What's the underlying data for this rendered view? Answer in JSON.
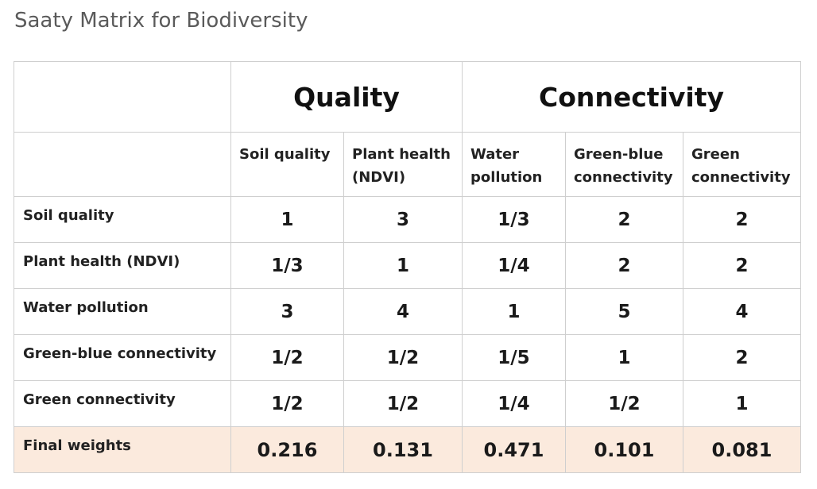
{
  "title": "Saaty Matrix for Biodiversity",
  "groups": [
    {
      "label": "Quality"
    },
    {
      "label": "Connectivity"
    }
  ],
  "columns": [
    {
      "line1": "Soil quality",
      "line2": ""
    },
    {
      "line1": "Plant health",
      "line2": "(NDVI)"
    },
    {
      "line1": "Water",
      "line2": "pollution"
    },
    {
      "line1": "Green-blue",
      "line2": "connectivity"
    },
    {
      "line1": "Green",
      "line2": "connectivity"
    }
  ],
  "rows": [
    {
      "label": "Soil quality",
      "values": [
        "1",
        "3",
        "1/3",
        "2",
        "2"
      ]
    },
    {
      "label": "Plant health (NDVI)",
      "values": [
        "1/3",
        "1",
        "1/4",
        "2",
        "2"
      ]
    },
    {
      "label": "Water pollution",
      "values": [
        "3",
        "4",
        "1",
        "5",
        "4"
      ]
    },
    {
      "label": "Green-blue connectivity",
      "values": [
        "1/2",
        "1/2",
        "1/5",
        "1",
        "2"
      ]
    },
    {
      "label": "Green connectivity",
      "values": [
        "1/2",
        "1/2",
        "1/4",
        "1/2",
        "1"
      ]
    }
  ],
  "weights": {
    "label": "Final weights",
    "values": [
      "0.216",
      "0.131",
      "0.471",
      "0.101",
      "0.081"
    ]
  },
  "colors": {
    "border": "#cfcfcf",
    "weights_background": "#fbeadd",
    "title": "#5a5a5a"
  }
}
